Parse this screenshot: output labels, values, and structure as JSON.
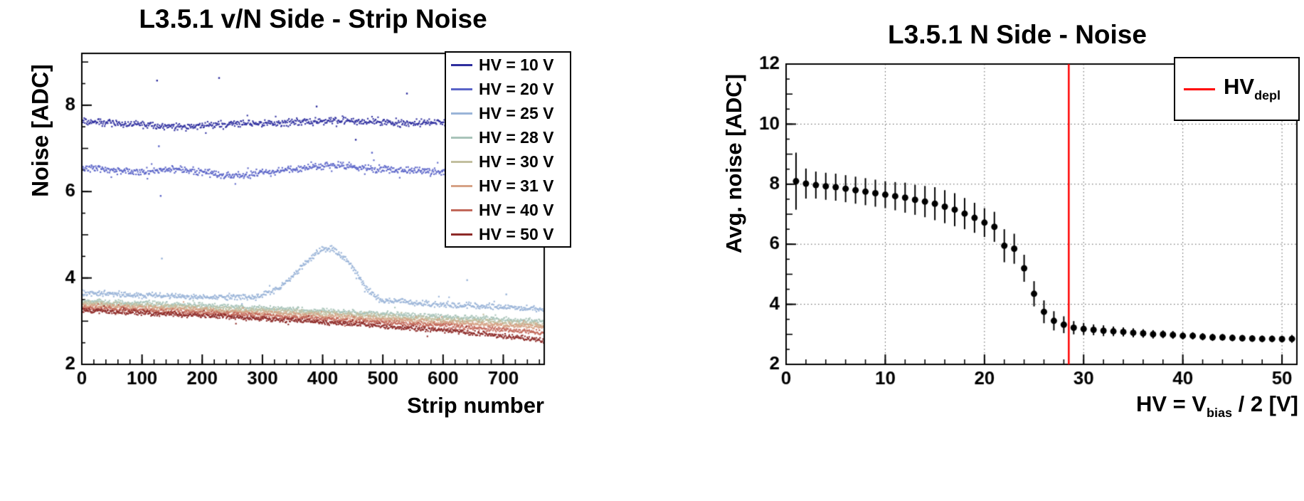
{
  "page": {
    "background": "#ffffff"
  },
  "chart_data": [
    {
      "type": "scatter",
      "title": "L3.5.1 v/N Side - Strip Noise",
      "xlabel": "Strip number",
      "ylabel": "Noise [ADC]",
      "xlim": [
        0,
        768
      ],
      "ylim": [
        2,
        9.2
      ],
      "xticks": [
        0,
        100,
        200,
        300,
        400,
        500,
        600,
        700
      ],
      "yticks": [
        2,
        4,
        6,
        8
      ],
      "x_minor_step": 20,
      "y_minor_step": 0.5,
      "grid": false,
      "legend_position": "top-right",
      "series": [
        {
          "name": "HV = 10 V",
          "color": "#2e2e9e",
          "jitter": 0.07,
          "anchors": [
            [
              0,
              7.62
            ],
            [
              100,
              7.55
            ],
            [
              160,
              7.48
            ],
            [
              250,
              7.57
            ],
            [
              350,
              7.6
            ],
            [
              430,
              7.66
            ],
            [
              520,
              7.58
            ],
            [
              620,
              7.62
            ],
            [
              767,
              7.57
            ]
          ]
        },
        {
          "name": "HV = 20 V",
          "color": "#5a64c8",
          "jitter": 0.07,
          "anchors": [
            [
              0,
              6.55
            ],
            [
              90,
              6.45
            ],
            [
              160,
              6.52
            ],
            [
              250,
              6.36
            ],
            [
              340,
              6.5
            ],
            [
              420,
              6.62
            ],
            [
              510,
              6.5
            ],
            [
              620,
              6.46
            ],
            [
              767,
              6.48
            ]
          ]
        },
        {
          "name": "HV = 25 V",
          "color": "#9ab4d8",
          "jitter": 0.06,
          "anchors": [
            [
              0,
              3.66
            ],
            [
              100,
              3.6
            ],
            [
              200,
              3.56
            ],
            [
              290,
              3.56
            ],
            [
              330,
              3.78
            ],
            [
              365,
              4.25
            ],
            [
              395,
              4.65
            ],
            [
              415,
              4.68
            ],
            [
              445,
              4.35
            ],
            [
              470,
              3.8
            ],
            [
              495,
              3.5
            ],
            [
              550,
              3.42
            ],
            [
              650,
              3.36
            ],
            [
              767,
              3.27
            ]
          ]
        },
        {
          "name": "HV = 28 V",
          "color": "#a9c4ba",
          "jitter": 0.05,
          "anchors": [
            [
              0,
              3.46
            ],
            [
              200,
              3.36
            ],
            [
              400,
              3.24
            ],
            [
              600,
              3.1
            ],
            [
              767,
              3.0
            ]
          ]
        },
        {
          "name": "HV = 30 V",
          "color": "#c2bf9f",
          "jitter": 0.05,
          "anchors": [
            [
              0,
              3.41
            ],
            [
              200,
              3.3
            ],
            [
              400,
              3.18
            ],
            [
              600,
              3.03
            ],
            [
              767,
              2.92
            ]
          ]
        },
        {
          "name": "HV = 31 V",
          "color": "#d6a286",
          "jitter": 0.05,
          "anchors": [
            [
              0,
              3.36
            ],
            [
              200,
              3.25
            ],
            [
              400,
              3.12
            ],
            [
              600,
              2.97
            ],
            [
              767,
              2.86
            ]
          ]
        },
        {
          "name": "HV = 40 V",
          "color": "#c2685a",
          "jitter": 0.05,
          "anchors": [
            [
              0,
              3.31
            ],
            [
              200,
              3.19
            ],
            [
              400,
              3.05
            ],
            [
              600,
              2.89
            ],
            [
              767,
              2.73
            ]
          ]
        },
        {
          "name": "HV = 50 V",
          "color": "#8d2a28",
          "jitter": 0.05,
          "anchors": [
            [
              0,
              3.26
            ],
            [
              200,
              3.13
            ],
            [
              400,
              2.98
            ],
            [
              600,
              2.79
            ],
            [
              767,
              2.56
            ]
          ]
        }
      ],
      "outliers": [
        {
          "series": 0,
          "x": 125,
          "y": 8.57
        },
        {
          "series": 0,
          "x": 228,
          "y": 8.63
        },
        {
          "series": 0,
          "x": 390,
          "y": 7.97
        },
        {
          "series": 0,
          "x": 540,
          "y": 8.27
        },
        {
          "series": 0,
          "x": 455,
          "y": 7.2
        },
        {
          "series": 1,
          "x": 128,
          "y": 7.05
        },
        {
          "series": 1,
          "x": 131,
          "y": 5.9
        },
        {
          "series": 1,
          "x": 482,
          "y": 6.9
        },
        {
          "series": 2,
          "x": 133,
          "y": 4.45
        },
        {
          "series": 2,
          "x": 640,
          "y": 3.95
        },
        {
          "series": 2,
          "x": 705,
          "y": 3.62
        }
      ]
    },
    {
      "type": "errorbar",
      "title": "L3.5.1 N Side - Noise",
      "ylabel": "Avg. noise [ADC]",
      "xlabel_parts": {
        "main": "HV = V",
        "sub": "bias",
        "tail": " / 2 [V]"
      },
      "xlim": [
        0,
        51.5
      ],
      "ylim": [
        2,
        12
      ],
      "xticks": [
        0,
        10,
        20,
        30,
        40,
        50
      ],
      "yticks": [
        2,
        4,
        6,
        8,
        10,
        12
      ],
      "x_minor_step": 2,
      "y_minor_step": 0.5,
      "grid": true,
      "marker_color": "#000000",
      "vline": {
        "x": 28.5,
        "color": "#ff0000"
      },
      "legend": {
        "main": "HV",
        "sub": "depl"
      },
      "points": {
        "x": [
          1,
          2,
          3,
          4,
          5,
          6,
          7,
          8,
          9,
          10,
          11,
          12,
          13,
          14,
          15,
          16,
          17,
          18,
          19,
          20,
          21,
          22,
          23,
          24,
          25,
          26,
          27,
          28,
          29,
          30,
          31,
          32,
          33,
          34,
          35,
          36,
          37,
          38,
          39,
          40,
          41,
          42,
          43,
          44,
          45,
          46,
          47,
          48,
          49,
          50,
          51
        ],
        "y": [
          8.1,
          8.02,
          7.97,
          7.93,
          7.9,
          7.85,
          7.8,
          7.75,
          7.7,
          7.65,
          7.6,
          7.55,
          7.48,
          7.42,
          7.35,
          7.25,
          7.15,
          7.02,
          6.88,
          6.72,
          6.58,
          5.95,
          5.85,
          5.2,
          4.35,
          3.75,
          3.45,
          3.32,
          3.22,
          3.18,
          3.15,
          3.12,
          3.1,
          3.08,
          3.05,
          3.03,
          3.0,
          3.0,
          2.98,
          2.95,
          2.95,
          2.92,
          2.9,
          2.9,
          2.88,
          2.87,
          2.86,
          2.85,
          2.85,
          2.84,
          2.85
        ],
        "yerr": [
          0.95,
          0.5,
          0.45,
          0.45,
          0.45,
          0.45,
          0.45,
          0.45,
          0.45,
          0.45,
          0.47,
          0.5,
          0.5,
          0.52,
          0.55,
          0.55,
          0.55,
          0.52,
          0.5,
          0.48,
          0.5,
          0.55,
          0.5,
          0.45,
          0.42,
          0.38,
          0.32,
          0.28,
          0.22,
          0.2,
          0.18,
          0.18,
          0.16,
          0.15,
          0.15,
          0.14,
          0.14,
          0.13,
          0.13,
          0.12,
          0.12,
          0.12,
          0.12,
          0.11,
          0.11,
          0.11,
          0.11,
          0.11,
          0.11,
          0.11,
          0.13
        ]
      }
    }
  ]
}
